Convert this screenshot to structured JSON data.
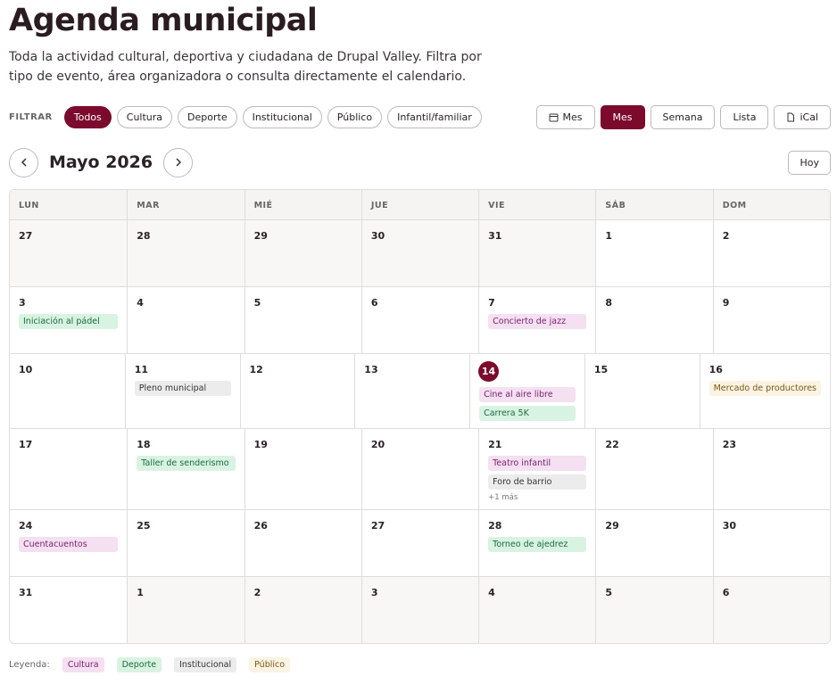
{
  "header": {
    "title": "Agenda municipal",
    "description": "Toda la actividad cultural, deportiva y ciudadana de Drupal Valley. Filtra por tipo de evento, área organizadora o consulta directamente el calendario."
  },
  "filters": {
    "label": "FILTRAR",
    "items": [
      "Todos",
      "Cultura",
      "Deporte",
      "Institucional",
      "Público",
      "Infantil/familiar"
    ],
    "active": 0
  },
  "views": {
    "items": [
      "Mes",
      "Mes",
      "Semana",
      "Lista",
      "iCal"
    ],
    "active": 1
  },
  "nav": {
    "month": "Mayo 2026",
    "today": "Hoy"
  },
  "calendar": {
    "weekdays": [
      "LUN",
      "MAR",
      "MIÉ",
      "JUE",
      "VIE",
      "SÁB",
      "DOM"
    ],
    "weeks": [
      [
        {
          "day": 27,
          "outside": true
        },
        {
          "day": 28,
          "outside": true
        },
        {
          "day": 29,
          "outside": true
        },
        {
          "day": 30,
          "outside": true
        },
        {
          "day": 31,
          "outside": true
        },
        {
          "day": 1
        },
        {
          "day": 2
        }
      ],
      [
        {
          "day": 3,
          "events": [
            {
              "label": "Iniciación al pádel",
              "category": "Deporte"
            }
          ]
        },
        {
          "day": 4
        },
        {
          "day": 5
        },
        {
          "day": 6
        },
        {
          "day": 7,
          "events": [
            {
              "label": "Concierto de jazz",
              "category": "Cultura"
            }
          ]
        },
        {
          "day": 8
        },
        {
          "day": 9
        }
      ],
      [
        {
          "day": 10
        },
        {
          "day": 11,
          "events": [
            {
              "label": "Pleno municipal",
              "category": "Institucional"
            }
          ]
        },
        {
          "day": 12
        },
        {
          "day": 13
        },
        {
          "day": 14,
          "today": true,
          "events": [
            {
              "label": "Cine al aire libre",
              "category": "Cultura"
            },
            {
              "label": "Carrera 5K",
              "category": "Deporte"
            }
          ]
        },
        {
          "day": 15
        },
        {
          "day": 16,
          "events": [
            {
              "label": "Mercado de productores",
              "category": "Público"
            }
          ]
        }
      ],
      [
        {
          "day": 17
        },
        {
          "day": 18,
          "events": [
            {
              "label": "Taller de senderismo",
              "category": "Deporte"
            }
          ]
        },
        {
          "day": 19
        },
        {
          "day": 20
        },
        {
          "day": 21,
          "events": [
            {
              "label": "Teatro infantil",
              "category": "Cultura"
            },
            {
              "label": "Foro de barrio",
              "category": "Institucional"
            }
          ],
          "more": "+1 más"
        },
        {
          "day": 22
        },
        {
          "day": 23
        }
      ],
      [
        {
          "day": 24,
          "events": [
            {
              "label": "Cuentacuentos",
              "category": "Cultura"
            }
          ]
        },
        {
          "day": 25
        },
        {
          "day": 26
        },
        {
          "day": 27
        },
        {
          "day": 28,
          "events": [
            {
              "label": "Torneo de ajedrez",
              "category": "Deporte"
            }
          ]
        },
        {
          "day": 29
        },
        {
          "day": 30
        }
      ],
      [
        {
          "day": 31
        },
        {
          "day": 1,
          "outside": true
        },
        {
          "day": 2,
          "outside": true
        },
        {
          "day": 3,
          "outside": true
        },
        {
          "day": 4,
          "outside": true
        },
        {
          "day": 5,
          "outside": true
        },
        {
          "day": 6,
          "outside": true
        }
      ]
    ]
  },
  "legend": {
    "label": "Leyenda:",
    "items": [
      {
        "name": "Cultura",
        "bg": "#f4e0f1",
        "color": "#7a1f6e"
      },
      {
        "name": "Deporte",
        "bg": "#d9f3e3",
        "color": "#1b6b3c"
      },
      {
        "name": "Institucional",
        "bg": "#ececec",
        "color": "#333333"
      },
      {
        "name": "Público",
        "bg": "#fbf3e3",
        "color": "#7a5a12"
      }
    ]
  }
}
